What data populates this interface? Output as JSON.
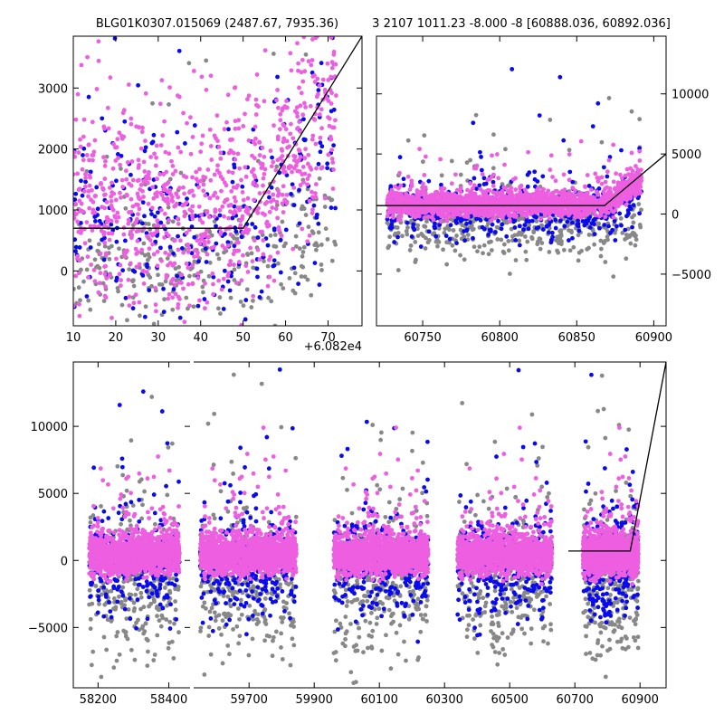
{
  "chart_data": [
    {
      "type": "scatter",
      "title": "BLG01K0307.015069 (2487.67, 7935.36)",
      "offset_label": "+6.082e4",
      "xlim": [
        10,
        78
      ],
      "ylim": [
        -900,
        3850
      ],
      "xticks": [
        10,
        20,
        30,
        40,
        50,
        60,
        70
      ],
      "yticks": [
        0,
        1000,
        2000,
        3000
      ],
      "series_colors": {
        "grey": "#888888",
        "blue": "#0a0aee",
        "magenta": "#ee5ee0"
      },
      "model_line": {
        "x": [
          10,
          50,
          78
        ],
        "y": [
          700,
          700,
          3850
        ],
        "color": "#000000"
      },
      "point_clouds": [
        {
          "series": "grey",
          "n": 300,
          "x_range": [
            10,
            72
          ],
          "center": 150,
          "spread": 550,
          "rise_from": 50,
          "rise_slope": 25
        },
        {
          "series": "blue",
          "n": 300,
          "x_range": [
            10,
            72
          ],
          "center": 600,
          "spread": 900,
          "rise_from": 50,
          "rise_slope": 70
        },
        {
          "series": "magenta",
          "n": 900,
          "x_range": [
            10,
            72
          ],
          "center": 1000,
          "spread": 800,
          "rise_from": 50,
          "rise_slope": 80
        }
      ]
    },
    {
      "type": "scatter",
      "title": "3 2107 1011.23 -8.000 -8 [60888.036, 60892.036]",
      "xlim": [
        60720,
        60908
      ],
      "ylim": [
        -9300,
        14800
      ],
      "xticks": [
        60750,
        60800,
        60850,
        60900
      ],
      "yticks": [
        -5000,
        0,
        5000,
        10000
      ],
      "y_axis_side": "right",
      "model_line": {
        "x": [
          60720,
          60868,
          60908
        ],
        "y": [
          700,
          700,
          5000
        ],
        "color": "#000000"
      },
      "point_clouds": [
        {
          "series": "grey",
          "n": 500,
          "x_range": [
            60727,
            60892
          ],
          "center": -800,
          "spread": 1500,
          "rise_from": 60868,
          "rise_slope": 40
        },
        {
          "series": "blue",
          "n": 500,
          "x_range": [
            60727,
            60892
          ],
          "center": 200,
          "spread": 1100,
          "rise_from": 60868,
          "rise_slope": 60
        },
        {
          "series": "magenta",
          "n": 2000,
          "x_range": [
            60727,
            60892
          ],
          "center": 800,
          "spread": 500,
          "rise_from": 60868,
          "rise_slope": 80
        }
      ]
    },
    {
      "type": "scatter",
      "title": "",
      "broken_x_axis": true,
      "ylim": [
        -9500,
        14800
      ],
      "yticks": [
        -5000,
        0,
        5000,
        10000
      ],
      "segments": [
        {
          "xlim": [
            58130,
            58460
          ],
          "xticks": [
            58200,
            58400
          ],
          "data_range": [
            58175,
            58430
          ]
        },
        {
          "xlim": [
            59530,
            60980
          ],
          "xticks": [
            59700,
            59900,
            60100,
            60300,
            60500,
            60700,
            60900
          ],
          "seasons": [
            [
              59550,
              59845
            ],
            [
              59960,
              60250
            ],
            [
              60340,
              60630
            ],
            [
              60725,
              60895
            ]
          ]
        }
      ],
      "model_line": {
        "x": [
          60680,
          60870,
          60980
        ],
        "y": [
          700,
          700,
          14800
        ],
        "color": "#000000"
      },
      "point_clouds": [
        {
          "series": "grey",
          "n_per_season": 300,
          "center": -1800,
          "spread": 2600
        },
        {
          "series": "blue",
          "n_per_season": 300,
          "center": -500,
          "spread": 1800
        },
        {
          "series": "magenta",
          "n_per_season": 1500,
          "center": 400,
          "spread": 700
        }
      ]
    }
  ]
}
